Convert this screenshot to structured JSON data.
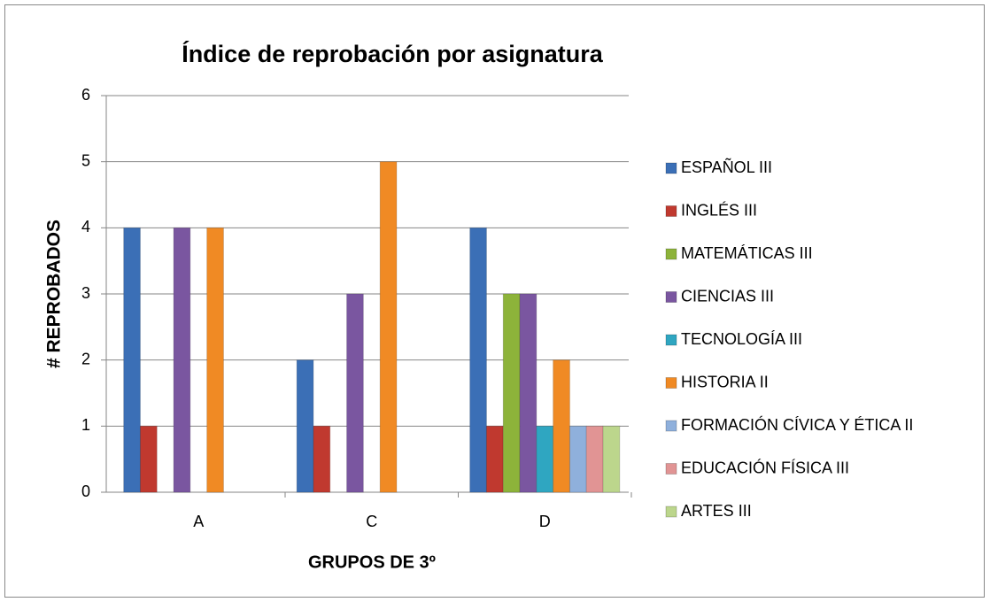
{
  "chart_data": {
    "type": "bar",
    "title": "Índice de reprobación por asignatura",
    "xlabel": "GRUPOS DE 3º",
    "ylabel": "# REPROBADOS",
    "categories": [
      "A",
      "C",
      "D"
    ],
    "series": [
      {
        "name": "ESPAÑOL III",
        "color": "#3b6fb6",
        "values": [
          4,
          2,
          4
        ]
      },
      {
        "name": "INGLÉS III",
        "color": "#c0392f",
        "values": [
          1,
          1,
          1
        ]
      },
      {
        "name": "MATEMÁTICAS III",
        "color": "#8db33a",
        "values": [
          0,
          0,
          3
        ]
      },
      {
        "name": "CIENCIAS III",
        "color": "#7a56a0",
        "values": [
          4,
          3,
          3
        ]
      },
      {
        "name": "TECNOLOGÍA III",
        "color": "#2fa6c1",
        "values": [
          0,
          0,
          1
        ]
      },
      {
        "name": "HISTORIA II",
        "color": "#f08a24",
        "values": [
          4,
          5,
          2
        ]
      },
      {
        "name": "FORMACIÓN CÍVICA Y ÉTICA II",
        "color": "#8fb0dc",
        "values": [
          0,
          0,
          1
        ]
      },
      {
        "name": "EDUCACIÓN FÍSICA III",
        "color": "#e19494",
        "values": [
          0,
          0,
          1
        ]
      },
      {
        "name": "ARTES III",
        "color": "#bcd68c",
        "values": [
          0,
          0,
          1
        ]
      }
    ],
    "ylim": [
      0,
      6
    ],
    "yticks": [
      0,
      1,
      2,
      3,
      4,
      5,
      6
    ],
    "grid": true,
    "legend": "right"
  }
}
